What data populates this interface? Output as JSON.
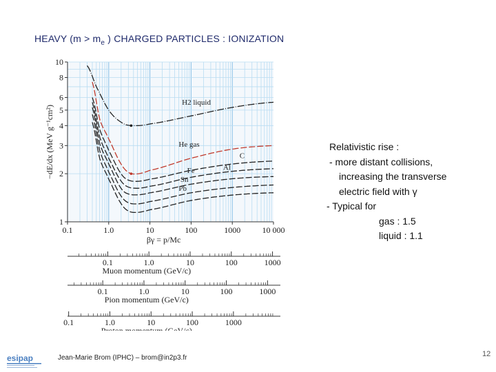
{
  "slide": {
    "title_main": "HEAVY (m > m",
    "title_sub": "e",
    "title_rest": " ) CHARGED PARTICLES : IONIZATION",
    "footer_author": "Jean-Marie Brom (IPHC) – brom@in2p3.fr",
    "page_number": "12",
    "logo_text": "esipap",
    "logo_color": "#4a7fc1"
  },
  "notes": {
    "lines": [
      "Relativistic rise :",
      " - more distant collisions,",
      "increasing the transverse",
      "electric field with γ",
      "-   Typical for",
      "gas :    1.5",
      "liquid : 1.1"
    ]
  },
  "chart_data": {
    "type": "line",
    "xscale": "log",
    "yscale": "log",
    "xlim": [
      0.1,
      10000
    ],
    "ylim": [
      1,
      10
    ],
    "grid": true,
    "xlabel": "βγ = p/Mc",
    "ylabel": "−dE/dx (MeV g⁻¹cm²)",
    "x_ticks": [
      "0.1",
      "1.0",
      "10",
      "100",
      "1000",
      "10 000"
    ],
    "y_ticks": [
      "1",
      "2",
      "3",
      "4",
      "5",
      "6",
      "8",
      "10"
    ],
    "series": [
      {
        "name": "H2 liquid",
        "color": "#222222",
        "x": [
          0.3,
          0.5,
          1,
          2,
          3.5,
          10,
          100,
          1000,
          10000
        ],
        "y": [
          9.5,
          7.0,
          5.0,
          4.2,
          4.0,
          4.1,
          4.6,
          5.2,
          5.6
        ]
      },
      {
        "name": "He gas",
        "color": "#c0392b",
        "x": [
          0.4,
          0.6,
          1,
          2,
          3.5,
          10,
          100,
          1000,
          10000
        ],
        "y": [
          7.5,
          4.4,
          3.3,
          2.3,
          2.0,
          2.1,
          2.5,
          2.85,
          3.0
        ]
      },
      {
        "name": "C",
        "color": "#222222",
        "x": [
          0.4,
          0.6,
          1,
          2,
          3.5,
          10,
          100,
          1000,
          10000
        ],
        "y": [
          6.0,
          3.8,
          2.8,
          2.0,
          1.8,
          1.85,
          2.1,
          2.3,
          2.4
        ]
      },
      {
        "name": "Al",
        "color": "#222222",
        "x": [
          0.4,
          0.6,
          1,
          2,
          3.5,
          10,
          100,
          1000,
          10000
        ],
        "y": [
          5.6,
          3.4,
          2.5,
          1.8,
          1.63,
          1.67,
          1.9,
          2.07,
          2.15
        ]
      },
      {
        "name": "Fe",
        "color": "#222222",
        "x": [
          0.4,
          0.6,
          1,
          2,
          3.5,
          10,
          100,
          1000,
          10000
        ],
        "y": [
          5.2,
          3.1,
          2.3,
          1.62,
          1.48,
          1.52,
          1.72,
          1.86,
          1.92
        ]
      },
      {
        "name": "Sn",
        "color": "#222222",
        "x": [
          0.4,
          0.6,
          1,
          2,
          3.5,
          10,
          100,
          1000,
          10000
        ],
        "y": [
          4.7,
          2.8,
          2.05,
          1.45,
          1.3,
          1.34,
          1.52,
          1.64,
          1.7
        ]
      },
      {
        "name": "Pb",
        "color": "#222222",
        "x": [
          0.4,
          0.6,
          1,
          2,
          3.5,
          10,
          100,
          1000,
          10000
        ],
        "y": [
          4.2,
          2.5,
          1.85,
          1.3,
          1.15,
          1.19,
          1.36,
          1.47,
          1.52
        ]
      }
    ],
    "momentum_axes": [
      {
        "label": "Muon momentum (GeV/c)",
        "ticks": [
          "0.1",
          "1.0",
          "10",
          "100",
          "1000"
        ],
        "values": [
          0.1,
          1,
          10,
          100,
          1000
        ],
        "scale": 0.10566
      },
      {
        "label": "Pion momentum (GeV/c)",
        "ticks": [
          "0.1",
          "1.0",
          "10",
          "100",
          "1000"
        ],
        "values": [
          0.1,
          1,
          10,
          100,
          1000
        ],
        "scale": 0.13957
      },
      {
        "label": "Proton momentum (GeV/c)",
        "ticks": [
          "0.1",
          "1.0",
          "10",
          "100",
          "1000"
        ],
        "values": [
          0.1,
          1,
          10,
          100,
          1000
        ],
        "scale": 0.93827
      }
    ]
  }
}
